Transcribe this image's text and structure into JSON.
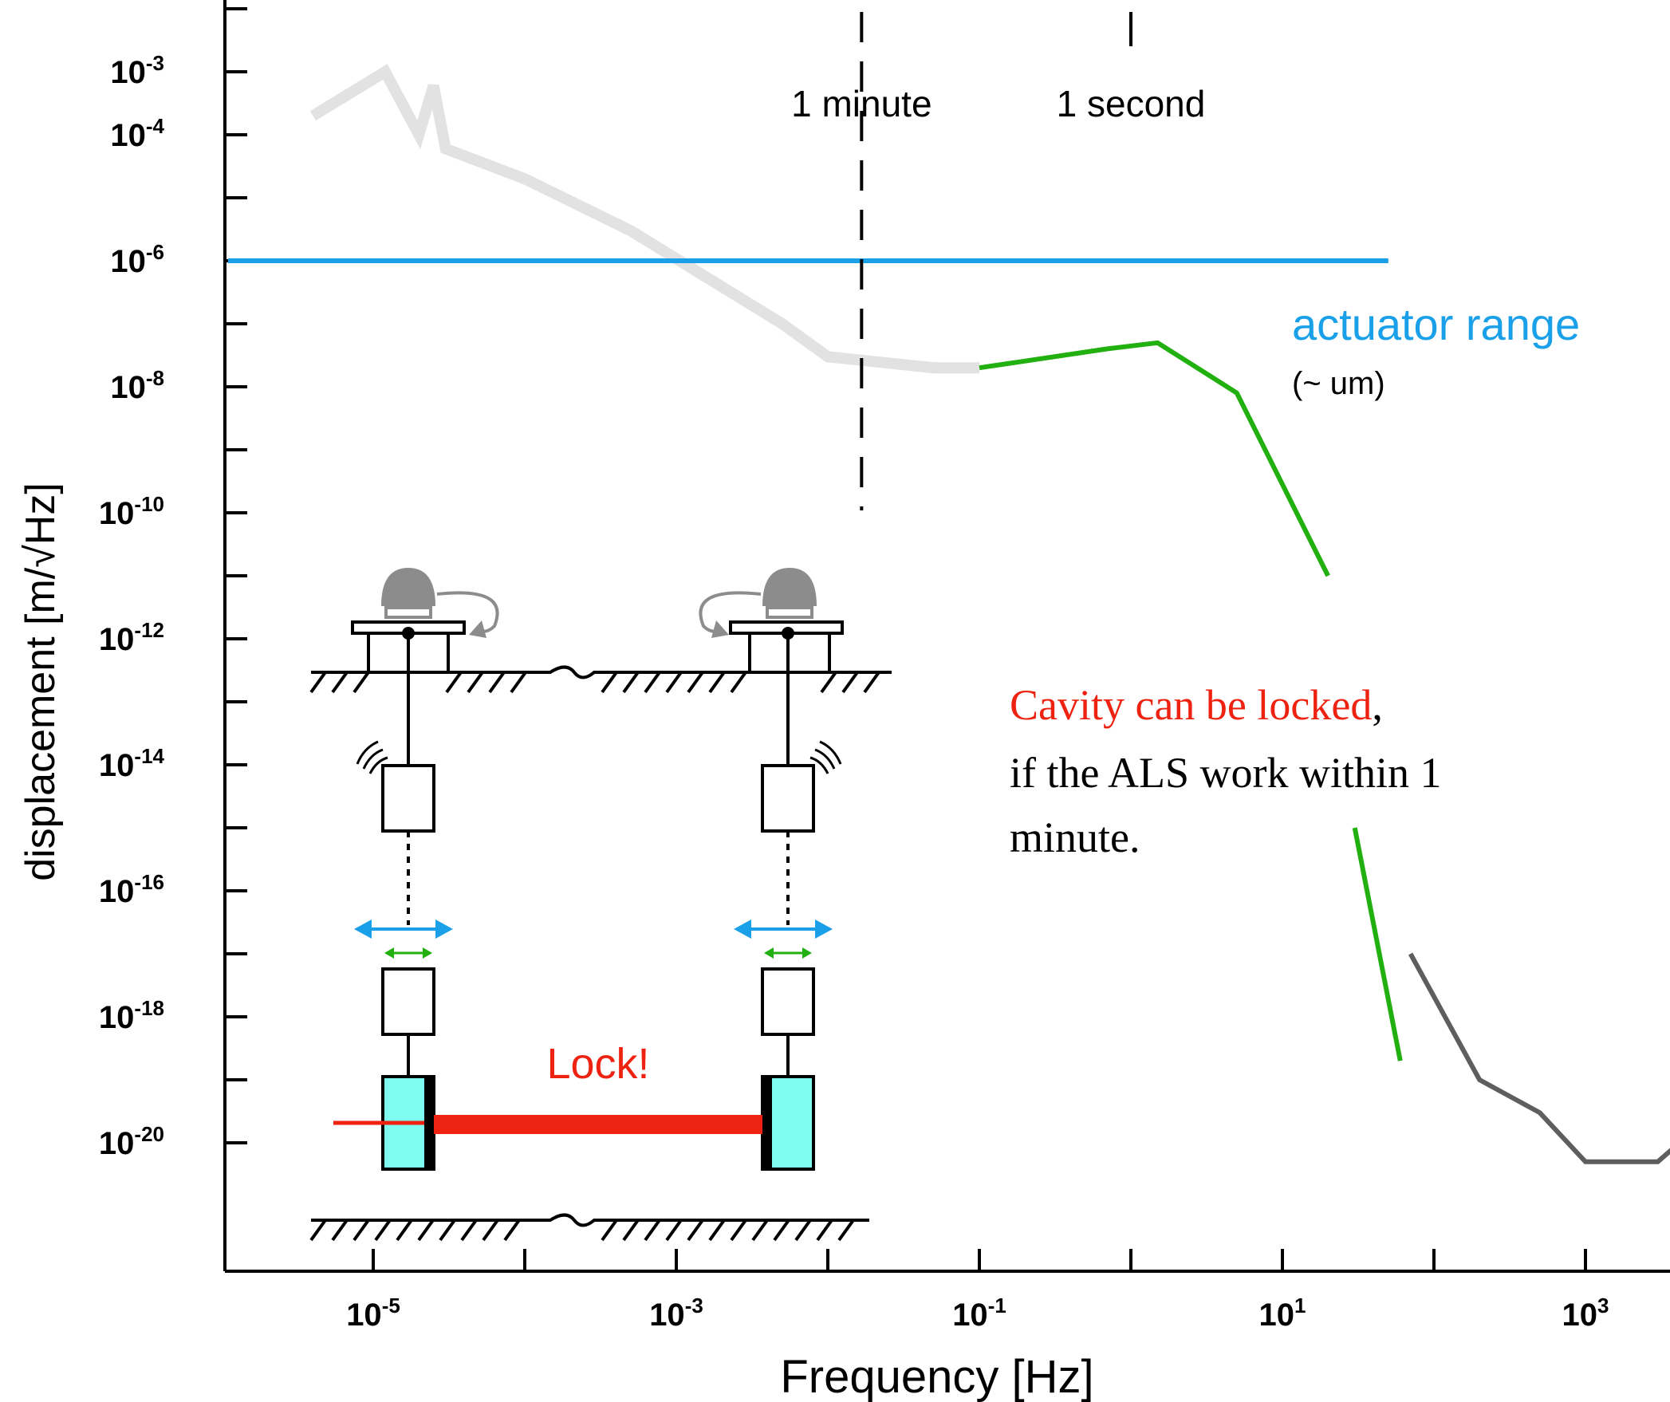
{
  "chart_data": {
    "type": "line",
    "xlabel": "Frequency [Hz]",
    "ylabel": "displacement [m/√Hz]",
    "x_scale": "log",
    "y_scale": "log",
    "xlim": [
      1e-06,
      10000.0
    ],
    "ylim": [
      1e-21,
      0.01
    ],
    "x_ticks": [
      {
        "base": "10",
        "exp": "-5"
      },
      {
        "base": "10",
        "exp": "-3"
      },
      {
        "base": "10",
        "exp": "-1"
      },
      {
        "base": "10",
        "exp": "1"
      },
      {
        "base": "10",
        "exp": "3"
      }
    ],
    "y_ticks": [
      {
        "base": "10",
        "exp": "-3"
      },
      {
        "base": "10",
        "exp": "-4"
      },
      {
        "base": "10",
        "exp": "-6"
      },
      {
        "base": "10",
        "exp": "-8"
      },
      {
        "base": "10",
        "exp": "-10"
      },
      {
        "base": "10",
        "exp": "-12"
      },
      {
        "base": "10",
        "exp": "-14"
      },
      {
        "base": "10",
        "exp": "-16"
      },
      {
        "base": "10",
        "exp": "-18"
      },
      {
        "base": "10",
        "exp": "-20"
      }
    ],
    "series": [
      {
        "id": "seismic",
        "color": "#e2e2e2",
        "points": [
          [
            4e-06,
            0.0002
          ],
          [
            1.2e-05,
            0.001
          ],
          [
            2e-05,
            0.0001
          ],
          [
            2.5e-05,
            0.0006
          ],
          [
            3e-05,
            6e-05
          ],
          [
            0.0001,
            2e-05
          ],
          [
            0.0005,
            3e-06
          ],
          [
            0.005,
            1e-07
          ],
          [
            0.01,
            3e-08
          ],
          [
            0.05,
            2e-08
          ],
          [
            0.1,
            2e-08
          ]
        ]
      },
      {
        "id": "residual",
        "color": "#22b010",
        "points": [
          [
            0.1,
            2e-08
          ],
          [
            0.7,
            4e-08
          ],
          [
            1.5,
            5e-08
          ],
          [
            5,
            8e-09
          ],
          [
            20.0,
            1e-11
          ],
          [
            30.0,
            1e-15
          ],
          [
            60.0,
            2e-19
          ]
        ]
      },
      {
        "id": "sensitivity",
        "color": "#5e5e5e",
        "points": [
          [
            70.0,
            1e-17
          ],
          [
            200.0,
            1e-19
          ],
          [
            500.0,
            3e-20
          ],
          [
            1000.0,
            5e-21
          ],
          [
            3000.0,
            5e-21
          ],
          [
            7000.0,
            3e-20
          ],
          [
            10000.0,
            1e-19
          ]
        ]
      },
      {
        "id": "actuator",
        "color": "#1aa0e8",
        "points": [
          [
            1.1e-06,
            1e-06
          ],
          [
            50.0,
            1e-06
          ]
        ]
      }
    ],
    "annotations": {
      "minute_marker": {
        "label": "1 minute",
        "x": 0.0167
      },
      "second_marker": {
        "label": "1 second",
        "x": 1.0
      },
      "actuator_label": "actuator range",
      "actuator_sublabel": "(~ um)",
      "cavity_text_red": "Cavity can be locked",
      "cavity_text_comma": ",",
      "cavity_text_line2": "if the ALS work within 1",
      "cavity_text_line3": "minute.",
      "lock_label": "Lock!"
    },
    "colors": {
      "actuator": "#1aa0e8",
      "residual": "#22b010",
      "lock": "#ee2211",
      "mirror": "#7ffbef"
    }
  }
}
